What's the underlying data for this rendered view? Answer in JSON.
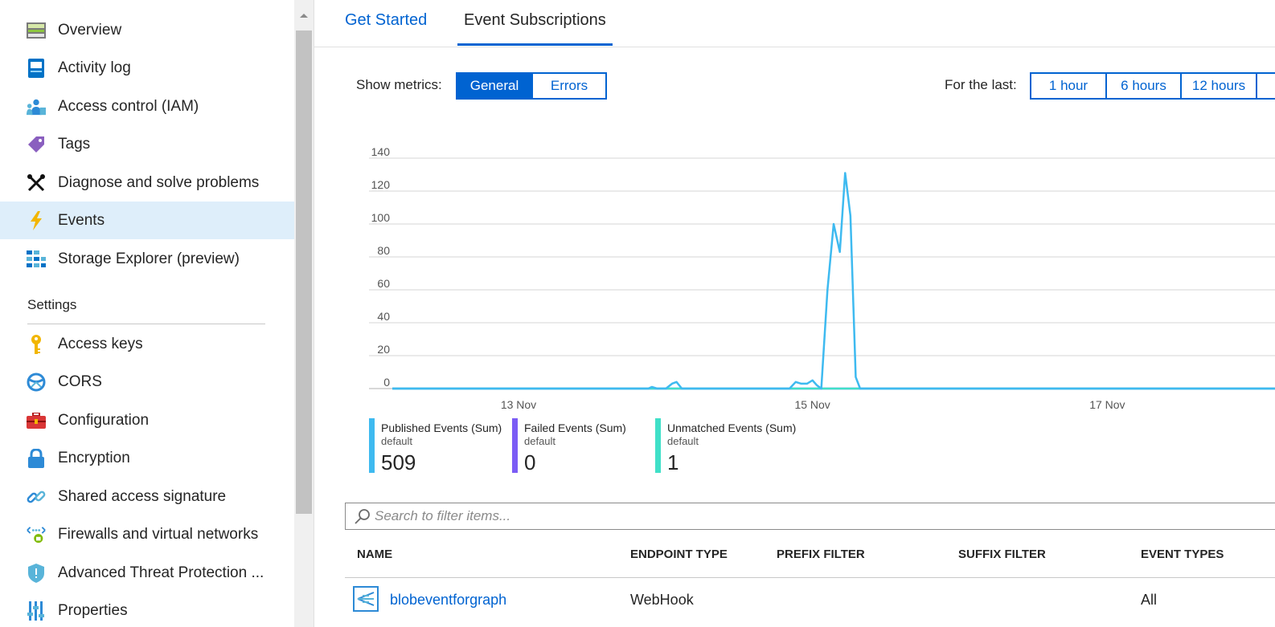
{
  "sidebar": {
    "items": [
      {
        "label": "Overview",
        "icon": "overview-icon"
      },
      {
        "label": "Activity log",
        "icon": "activity-log-icon"
      },
      {
        "label": "Access control (IAM)",
        "icon": "access-control-icon"
      },
      {
        "label": "Tags",
        "icon": "tag-icon"
      },
      {
        "label": "Diagnose and solve problems",
        "icon": "wrench-icon"
      },
      {
        "label": "Events",
        "icon": "lightning-icon"
      },
      {
        "label": "Storage Explorer (preview)",
        "icon": "storage-explorer-icon"
      }
    ],
    "settings_header": "Settings",
    "settings_items": [
      {
        "label": "Access keys",
        "icon": "key-icon"
      },
      {
        "label": "CORS",
        "icon": "cors-icon"
      },
      {
        "label": "Configuration",
        "icon": "toolbox-icon"
      },
      {
        "label": "Encryption",
        "icon": "lock-icon"
      },
      {
        "label": "Shared access signature",
        "icon": "link-icon"
      },
      {
        "label": "Firewalls and virtual networks",
        "icon": "firewall-icon"
      },
      {
        "label": "Advanced Threat Protection ...",
        "icon": "shield-icon"
      },
      {
        "label": "Properties",
        "icon": "properties-icon"
      }
    ],
    "active_item": "Events"
  },
  "tabs": [
    {
      "label": "Get Started"
    },
    {
      "label": "Event Subscriptions"
    }
  ],
  "active_tab": "Event Subscriptions",
  "metrics": {
    "label": "Show metrics:",
    "options": [
      "General",
      "Errors"
    ],
    "selected": "General"
  },
  "time_range": {
    "label": "For the last:",
    "options": [
      "1 hour",
      "6 hours",
      "12 hours"
    ]
  },
  "chart_data": {
    "type": "line",
    "yticks": [
      0,
      20,
      40,
      60,
      80,
      100,
      120,
      140
    ],
    "ylim": [
      0,
      140
    ],
    "xlim": [
      0,
      1.0
    ],
    "xtick_labels": [
      {
        "label": "13 Nov",
        "x": 0.143
      },
      {
        "label": "15 Nov",
        "x": 0.476
      },
      {
        "label": "17 Nov",
        "x": 0.81
      }
    ],
    "grid": true,
    "series": [
      {
        "name": "Published Events (Sum)",
        "color": "#3ebaf0",
        "points": [
          [
            0.0,
            0
          ],
          [
            0.29,
            0
          ],
          [
            0.294,
            1
          ],
          [
            0.3,
            0
          ],
          [
            0.31,
            0
          ],
          [
            0.317,
            3
          ],
          [
            0.322,
            4
          ],
          [
            0.328,
            0
          ],
          [
            0.45,
            0
          ],
          [
            0.457,
            4
          ],
          [
            0.463,
            3
          ],
          [
            0.47,
            3
          ],
          [
            0.476,
            5
          ],
          [
            0.481,
            2
          ],
          [
            0.486,
            0
          ],
          [
            0.493,
            60
          ],
          [
            0.5,
            100
          ],
          [
            0.507,
            83
          ],
          [
            0.513,
            131
          ],
          [
            0.519,
            105
          ],
          [
            0.525,
            7
          ],
          [
            0.53,
            0
          ],
          [
            1.0,
            0
          ]
        ]
      },
      {
        "name": "Failed Events (Sum)",
        "color": "#7b5cf5",
        "points": [
          [
            0.0,
            0
          ],
          [
            1.0,
            0
          ]
        ]
      },
      {
        "name": "Unmatched Events (Sum)",
        "color": "#40e0c8",
        "points": [
          [
            0.0,
            0
          ],
          [
            1.0,
            0
          ]
        ]
      }
    ]
  },
  "legend": [
    {
      "title": "Published Events (Sum)",
      "sub": "default",
      "value": "509",
      "color": "#3ebaf0"
    },
    {
      "title": "Failed Events (Sum)",
      "sub": "default",
      "value": "0",
      "color": "#7b5cf5"
    },
    {
      "title": "Unmatched Events (Sum)",
      "sub": "default",
      "value": "1",
      "color": "#40e0c8"
    }
  ],
  "search": {
    "placeholder": "Search to filter items...",
    "value": ""
  },
  "table": {
    "columns": [
      "NAME",
      "ENDPOINT TYPE",
      "PREFIX FILTER",
      "SUFFIX FILTER",
      "EVENT TYPES"
    ],
    "rows": [
      {
        "name": "blobeventforgraph",
        "endpoint_type": "WebHook",
        "prefix_filter": "",
        "suffix_filter": "",
        "event_types": "All",
        "icon": "event-grid-icon"
      }
    ]
  },
  "colors": {
    "accent": "#0063d1",
    "active_bg": "#deeefa"
  }
}
